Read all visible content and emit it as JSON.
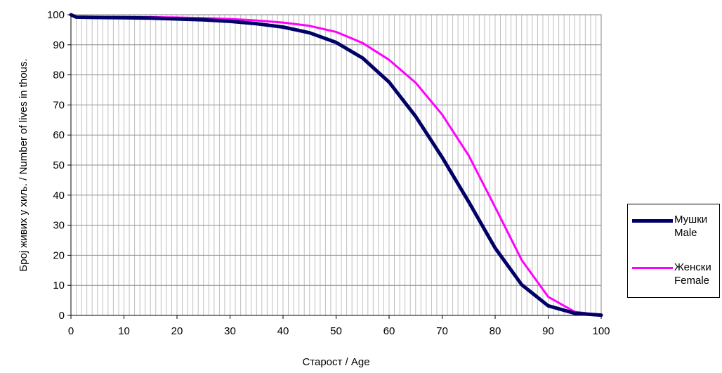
{
  "chart_data": {
    "type": "line",
    "xlabel": "Старост / Age",
    "ylabel": "Број живих у хиљ. / Number of lives in thous.",
    "xlim": [
      0,
      100
    ],
    "ylim": [
      0,
      100
    ],
    "x_ticks": [
      0,
      10,
      20,
      30,
      40,
      50,
      60,
      70,
      80,
      90,
      100
    ],
    "y_ticks": [
      0,
      10,
      20,
      30,
      40,
      50,
      60,
      70,
      80,
      90,
      100
    ],
    "x_tick_labels": [
      "0",
      "10",
      "20",
      "30",
      "40",
      "50",
      "60",
      "70",
      "80",
      "90",
      "100"
    ],
    "y_tick_labels": [
      "0",
      "10",
      "20",
      "30",
      "40",
      "50",
      "60",
      "70",
      "80",
      "90",
      "100"
    ],
    "grid": "vertical lines every 1 year, horizontal lines every 10",
    "legend_position": "right",
    "series": [
      {
        "label_line1": "Мушки",
        "label_line2": "Male",
        "color": "#000066",
        "x": [
          0,
          1,
          5,
          10,
          15,
          20,
          25,
          30,
          35,
          40,
          45,
          50,
          55,
          60,
          65,
          70,
          75,
          80,
          85,
          90,
          95,
          100
        ],
        "values": [
          100,
          99.2,
          99.1,
          99.0,
          98.9,
          98.6,
          98.3,
          97.8,
          97.0,
          95.9,
          94.0,
          90.8,
          85.6,
          77.6,
          66.2,
          52.6,
          37.8,
          22.4,
          10.2,
          3.2,
          0.7,
          0.1
        ]
      },
      {
        "label_line1": "Женски",
        "label_line2": "Female",
        "color": "#ff00ff",
        "x": [
          0,
          1,
          5,
          10,
          15,
          20,
          25,
          30,
          35,
          40,
          45,
          50,
          55,
          60,
          65,
          70,
          75,
          80,
          85,
          90,
          95,
          100
        ],
        "values": [
          100,
          99.4,
          99.3,
          99.3,
          99.2,
          99.1,
          98.9,
          98.6,
          98.1,
          97.4,
          96.3,
          94.3,
          90.6,
          85.0,
          77.4,
          66.8,
          53.2,
          36.0,
          18.4,
          6.2,
          1.2,
          0.1
        ]
      }
    ]
  }
}
